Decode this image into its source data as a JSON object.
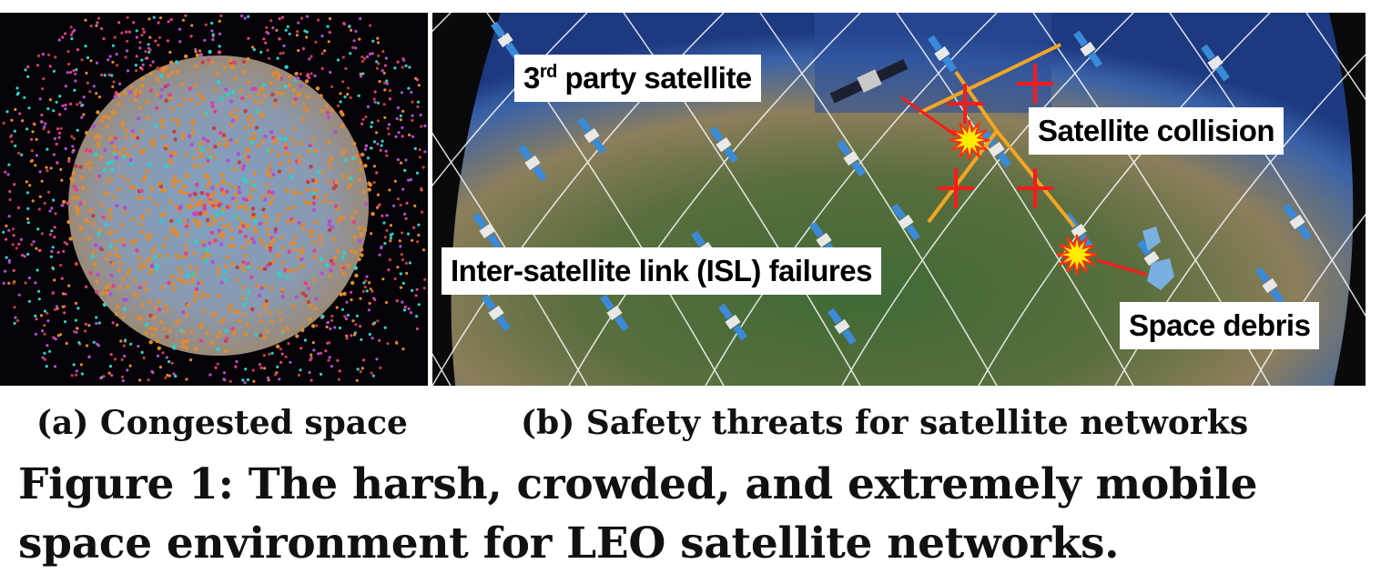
{
  "panel_a": {
    "subcaption": "(a) Congested space"
  },
  "panel_b": {
    "subcaption": "(b) Safety threats for satellite networks",
    "labels": {
      "third_party_prefix": "3",
      "third_party_sup": "rd",
      "third_party_rest": " party satellite",
      "collision": "Satellite collision",
      "isl": "Inter-satellite link (ISL) failures",
      "debris": "Space debris"
    }
  },
  "caption": {
    "line1": "Figure 1: The harsh, crowded, and extremely mobile",
    "line2": "space environment for LEO satellite networks."
  },
  "colors": {
    "link": "#f5a623",
    "failure_cross": "#ff1a1a",
    "explosion": "#ffee00",
    "arrow": "#ff1a1a"
  }
}
